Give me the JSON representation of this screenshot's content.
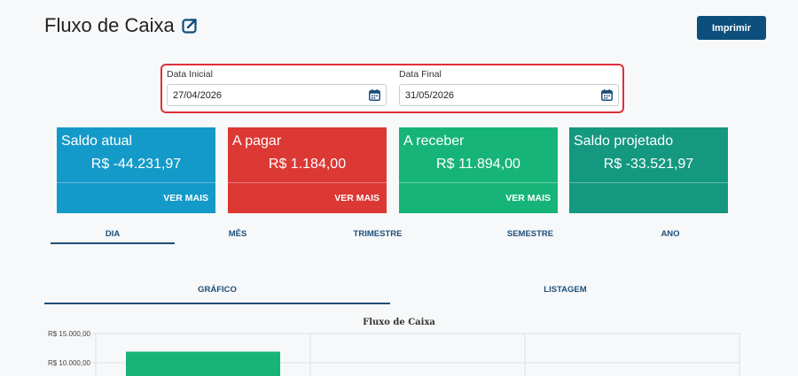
{
  "header": {
    "title": "Fluxo de Caixa",
    "print_label": "Imprimir"
  },
  "filters": {
    "start": {
      "label": "Data Inicial",
      "value": "27/04/2026"
    },
    "end": {
      "label": "Data Final",
      "value": "31/05/2026"
    }
  },
  "cards": [
    {
      "title": "Saldo atual",
      "value": "R$ -44.231,97",
      "link": "VER MAIS",
      "color": "#149ac8"
    },
    {
      "title": "A pagar",
      "value": "R$ 1.184,00",
      "link": "VER MAIS",
      "color": "#dc3834"
    },
    {
      "title": "A receber",
      "value": "R$ 11.894,00",
      "link": "VER MAIS",
      "color": "#17b47a"
    },
    {
      "title": "Saldo projetado",
      "value": "R$ -33.521,97",
      "color": "#14987f"
    }
  ],
  "period_tabs": [
    "DIA",
    "MÊS",
    "TRIMESTRE",
    "SEMESTRE",
    "ANO"
  ],
  "view_tabs": [
    "GRÁFICO",
    "LISTAGEM"
  ],
  "chart_data": {
    "type": "bar",
    "title": "Fluxo de Caixa",
    "y_tick_labels": [
      "R$ 15.000,00",
      "R$ 10.000,00"
    ],
    "ylim": [
      0,
      15000
    ],
    "values": [
      11894
    ],
    "bar_color": "#17b47a"
  }
}
